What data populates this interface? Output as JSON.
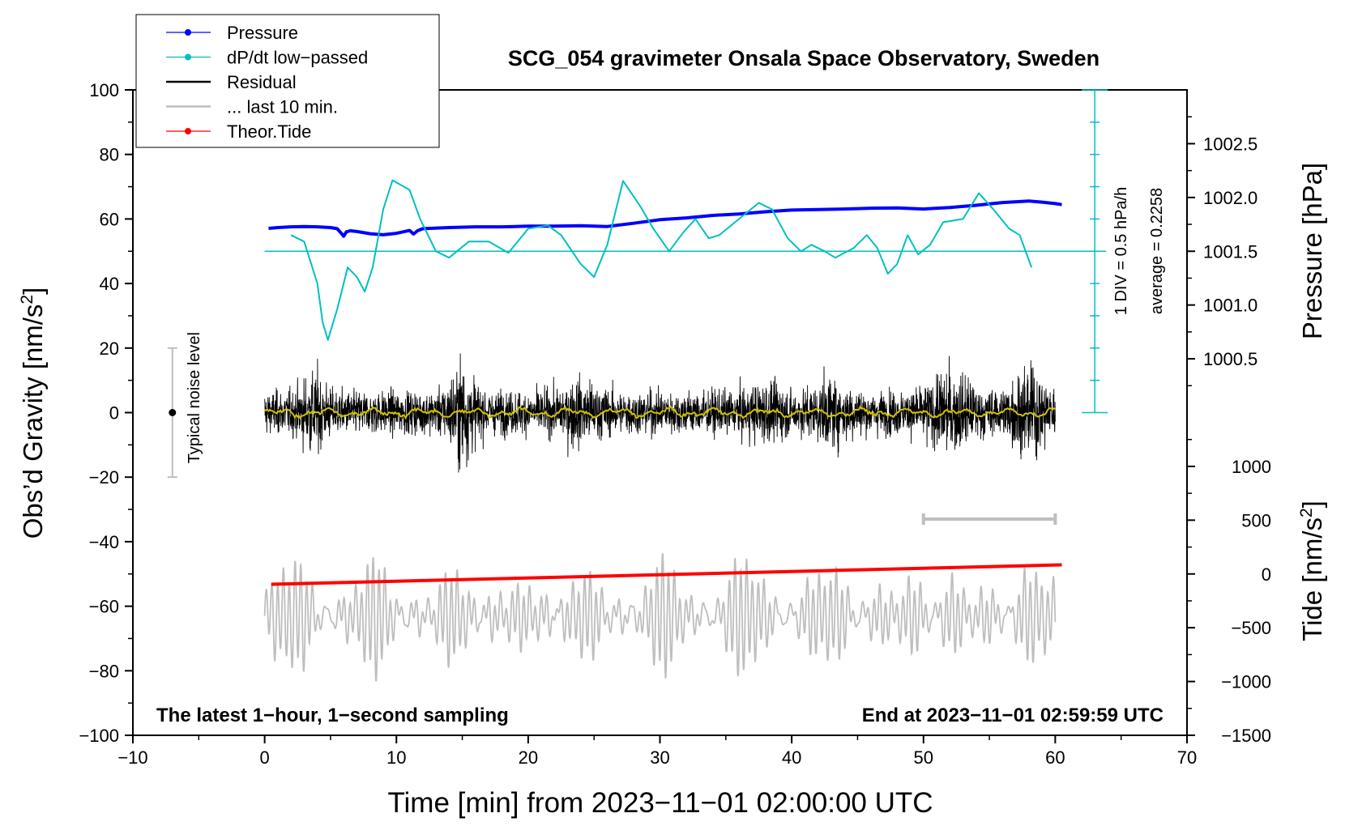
{
  "chart_data": {
    "type": "line",
    "title": "SCG_054 gravimeter Onsala Space Observatory, Sweden",
    "xlabel": "Time [min] from 2023−11−01 02:00:00 UTC",
    "ylabel_left_main": "Obs’d Gravity [nm/s",
    "ylabel_left_sup": "2",
    "ylabel_left_end": "]",
    "ylabel_right_pressure": "Pressure [hPa]",
    "ylabel_right_tide_main": "Tide [nm/s",
    "ylabel_right_tide_sup": "2",
    "ylabel_right_tide_end": "]",
    "xlim": [
      -10,
      70
    ],
    "ylim": [
      -100,
      100
    ],
    "x_ticks": [
      "−10",
      "0",
      "10",
      "20",
      "30",
      "40",
      "50",
      "60",
      "70"
    ],
    "x_tick_values": [
      -10,
      0,
      10,
      20,
      30,
      40,
      50,
      60,
      70
    ],
    "y_ticks": [
      "100",
      "80",
      "60",
      "40",
      "20",
      "0",
      "−20",
      "−40",
      "−60",
      "−80",
      "−100"
    ],
    "y_tick_values": [
      100,
      80,
      60,
      40,
      20,
      0,
      -20,
      -40,
      -60,
      -80,
      -100
    ],
    "pressure_axis": {
      "ticks": [
        "1002.5",
        "1002.0",
        "1001.5",
        "1001.0",
        "1000.5"
      ],
      "tick_values": [
        1002.5,
        1002.0,
        1001.5,
        1001.0,
        1000.5
      ],
      "ref_hpa": 1001.5,
      "ref_grav": 50,
      "grav_per_hpa": 33.33
    },
    "tide_axis": {
      "ticks": [
        "1000",
        "500",
        "0",
        "−500",
        "−1000",
        "−1500"
      ],
      "tick_values": [
        1000,
        500,
        0,
        -500,
        -1000,
        -1500
      ],
      "ref_tide": 0,
      "ref_grav": -50,
      "grav_per_unit": 0.03333
    },
    "legend": [
      {
        "label": "Pressure",
        "color": "#0000ff",
        "marker": true
      },
      {
        "label": "dP/dt low−passed",
        "color": "#00c0c0",
        "marker": true
      },
      {
        "label": "Residual",
        "color": "#000000",
        "marker": false
      },
      {
        "label": "... last 10 min.",
        "color": "#bebebe",
        "marker": false
      },
      {
        "label": "Theor.Tide",
        "color": "#ff0000",
        "marker": true
      }
    ],
    "annotations": {
      "bottom_left": "The latest 1−hour, 1−second sampling",
      "bottom_right": "End at 2023−11−01 02:59:59 UTC",
      "noise": "Typical noise level",
      "div_label": "1 DIV = 0.5 hPa/h",
      "average_label": "average = 0.2258"
    },
    "noise_bar": {
      "x": -7,
      "center": 0,
      "half_range": 20
    },
    "dpdt_scale": {
      "x": 63,
      "ymin": 0,
      "ymax": 100,
      "divisions": 10,
      "baseline": 50
    },
    "last10_bracket": {
      "x_start": 50,
      "x_end": 60,
      "y": -33
    },
    "series": [
      {
        "name": "Pressure",
        "color": "#0000ff",
        "x": [
          0.3,
          1,
          2,
          3,
          4,
          5,
          5.5,
          5.8,
          6,
          6.2,
          6.5,
          7,
          8,
          9,
          10,
          11,
          11.3,
          11.6,
          12,
          14,
          16,
          18,
          20,
          22,
          24,
          26,
          28,
          30,
          32,
          34,
          36,
          38,
          40,
          42,
          44,
          46,
          48,
          50,
          52,
          54,
          56,
          58,
          59,
          60,
          60.5
        ],
        "values": [
          1001.713,
          1001.72,
          1001.727,
          1001.73,
          1001.727,
          1001.72,
          1001.71,
          1001.67,
          1001.64,
          1001.68,
          1001.69,
          1001.683,
          1001.663,
          1001.653,
          1001.667,
          1001.693,
          1001.66,
          1001.69,
          1001.71,
          1001.72,
          1001.727,
          1001.727,
          1001.733,
          1001.733,
          1001.737,
          1001.73,
          1001.76,
          1001.793,
          1001.81,
          1001.833,
          1001.847,
          1001.867,
          1001.883,
          1001.887,
          1001.893,
          1001.9,
          1001.903,
          1001.893,
          1001.907,
          1001.927,
          1001.953,
          1001.967,
          1001.957,
          1001.943,
          1001.933
        ]
      },
      {
        "name": "dP/dt low-passed",
        "color": "#00c0c0",
        "x": [
          2,
          3,
          4,
          4.4,
          4.8,
          5.5,
          6.3,
          7,
          7.6,
          8.2,
          9,
          9.7,
          11,
          11.8,
          13,
          14,
          15.5,
          17,
          18.5,
          20,
          21.5,
          22.5,
          24,
          25,
          26,
          27.2,
          28.5,
          29.5,
          30.7,
          31.8,
          32.7,
          33.7,
          34.5,
          36,
          37.5,
          38.5,
          39.7,
          40.7,
          41.5,
          42.5,
          43.3,
          44.7,
          45.7,
          46.5,
          47.3,
          48,
          48.8,
          49.6,
          50.5,
          51.5,
          53,
          54.2,
          55.3,
          56.5,
          57.3,
          58.2
        ],
        "values": [
          55,
          53,
          40,
          28,
          22.5,
          32,
          45,
          42,
          37.5,
          45,
          63,
          72,
          69,
          60,
          50,
          48,
          53,
          53,
          49.5,
          57,
          58,
          55,
          46,
          42,
          52,
          71.8,
          64,
          57,
          50,
          56,
          60,
          54,
          55,
          60,
          65,
          63,
          54,
          50,
          52,
          50,
          48,
          51,
          55,
          51,
          43,
          46,
          55,
          49,
          52,
          59,
          60,
          68,
          63,
          57,
          55,
          45
        ]
      },
      {
        "name": "Theor.Tide",
        "color": "#ff0000",
        "x": [
          0.5,
          60.5
        ],
        "values": [
          -96,
          85
        ]
      }
    ]
  }
}
